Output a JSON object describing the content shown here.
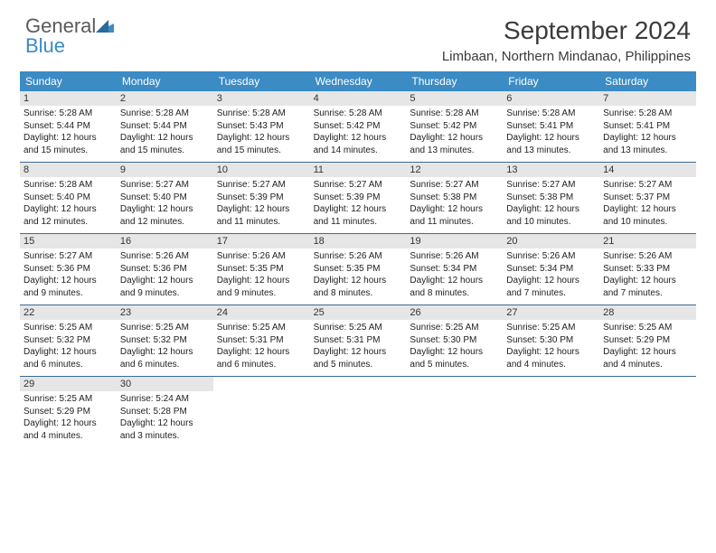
{
  "logo": {
    "general": "General",
    "blue": "Blue"
  },
  "header": {
    "month_title": "September 2024",
    "location": "Limbaan, Northern Mindanao, Philippines"
  },
  "colors": {
    "header_bg": "#3b8bc4",
    "week_divider": "#3b6a95",
    "day_num_bg": "#e6e6e6",
    "text": "#222222"
  },
  "day_names": [
    "Sunday",
    "Monday",
    "Tuesday",
    "Wednesday",
    "Thursday",
    "Friday",
    "Saturday"
  ],
  "weeks": [
    [
      {
        "num": "1",
        "sunrise": "Sunrise: 5:28 AM",
        "sunset": "Sunset: 5:44 PM",
        "d1": "Daylight: 12 hours",
        "d2": "and 15 minutes."
      },
      {
        "num": "2",
        "sunrise": "Sunrise: 5:28 AM",
        "sunset": "Sunset: 5:44 PM",
        "d1": "Daylight: 12 hours",
        "d2": "and 15 minutes."
      },
      {
        "num": "3",
        "sunrise": "Sunrise: 5:28 AM",
        "sunset": "Sunset: 5:43 PM",
        "d1": "Daylight: 12 hours",
        "d2": "and 15 minutes."
      },
      {
        "num": "4",
        "sunrise": "Sunrise: 5:28 AM",
        "sunset": "Sunset: 5:42 PM",
        "d1": "Daylight: 12 hours",
        "d2": "and 14 minutes."
      },
      {
        "num": "5",
        "sunrise": "Sunrise: 5:28 AM",
        "sunset": "Sunset: 5:42 PM",
        "d1": "Daylight: 12 hours",
        "d2": "and 13 minutes."
      },
      {
        "num": "6",
        "sunrise": "Sunrise: 5:28 AM",
        "sunset": "Sunset: 5:41 PM",
        "d1": "Daylight: 12 hours",
        "d2": "and 13 minutes."
      },
      {
        "num": "7",
        "sunrise": "Sunrise: 5:28 AM",
        "sunset": "Sunset: 5:41 PM",
        "d1": "Daylight: 12 hours",
        "d2": "and 13 minutes."
      }
    ],
    [
      {
        "num": "8",
        "sunrise": "Sunrise: 5:28 AM",
        "sunset": "Sunset: 5:40 PM",
        "d1": "Daylight: 12 hours",
        "d2": "and 12 minutes."
      },
      {
        "num": "9",
        "sunrise": "Sunrise: 5:27 AM",
        "sunset": "Sunset: 5:40 PM",
        "d1": "Daylight: 12 hours",
        "d2": "and 12 minutes."
      },
      {
        "num": "10",
        "sunrise": "Sunrise: 5:27 AM",
        "sunset": "Sunset: 5:39 PM",
        "d1": "Daylight: 12 hours",
        "d2": "and 11 minutes."
      },
      {
        "num": "11",
        "sunrise": "Sunrise: 5:27 AM",
        "sunset": "Sunset: 5:39 PM",
        "d1": "Daylight: 12 hours",
        "d2": "and 11 minutes."
      },
      {
        "num": "12",
        "sunrise": "Sunrise: 5:27 AM",
        "sunset": "Sunset: 5:38 PM",
        "d1": "Daylight: 12 hours",
        "d2": "and 11 minutes."
      },
      {
        "num": "13",
        "sunrise": "Sunrise: 5:27 AM",
        "sunset": "Sunset: 5:38 PM",
        "d1": "Daylight: 12 hours",
        "d2": "and 10 minutes."
      },
      {
        "num": "14",
        "sunrise": "Sunrise: 5:27 AM",
        "sunset": "Sunset: 5:37 PM",
        "d1": "Daylight: 12 hours",
        "d2": "and 10 minutes."
      }
    ],
    [
      {
        "num": "15",
        "sunrise": "Sunrise: 5:27 AM",
        "sunset": "Sunset: 5:36 PM",
        "d1": "Daylight: 12 hours",
        "d2": "and 9 minutes."
      },
      {
        "num": "16",
        "sunrise": "Sunrise: 5:26 AM",
        "sunset": "Sunset: 5:36 PM",
        "d1": "Daylight: 12 hours",
        "d2": "and 9 minutes."
      },
      {
        "num": "17",
        "sunrise": "Sunrise: 5:26 AM",
        "sunset": "Sunset: 5:35 PM",
        "d1": "Daylight: 12 hours",
        "d2": "and 9 minutes."
      },
      {
        "num": "18",
        "sunrise": "Sunrise: 5:26 AM",
        "sunset": "Sunset: 5:35 PM",
        "d1": "Daylight: 12 hours",
        "d2": "and 8 minutes."
      },
      {
        "num": "19",
        "sunrise": "Sunrise: 5:26 AM",
        "sunset": "Sunset: 5:34 PM",
        "d1": "Daylight: 12 hours",
        "d2": "and 8 minutes."
      },
      {
        "num": "20",
        "sunrise": "Sunrise: 5:26 AM",
        "sunset": "Sunset: 5:34 PM",
        "d1": "Daylight: 12 hours",
        "d2": "and 7 minutes."
      },
      {
        "num": "21",
        "sunrise": "Sunrise: 5:26 AM",
        "sunset": "Sunset: 5:33 PM",
        "d1": "Daylight: 12 hours",
        "d2": "and 7 minutes."
      }
    ],
    [
      {
        "num": "22",
        "sunrise": "Sunrise: 5:25 AM",
        "sunset": "Sunset: 5:32 PM",
        "d1": "Daylight: 12 hours",
        "d2": "and 6 minutes."
      },
      {
        "num": "23",
        "sunrise": "Sunrise: 5:25 AM",
        "sunset": "Sunset: 5:32 PM",
        "d1": "Daylight: 12 hours",
        "d2": "and 6 minutes."
      },
      {
        "num": "24",
        "sunrise": "Sunrise: 5:25 AM",
        "sunset": "Sunset: 5:31 PM",
        "d1": "Daylight: 12 hours",
        "d2": "and 6 minutes."
      },
      {
        "num": "25",
        "sunrise": "Sunrise: 5:25 AM",
        "sunset": "Sunset: 5:31 PM",
        "d1": "Daylight: 12 hours",
        "d2": "and 5 minutes."
      },
      {
        "num": "26",
        "sunrise": "Sunrise: 5:25 AM",
        "sunset": "Sunset: 5:30 PM",
        "d1": "Daylight: 12 hours",
        "d2": "and 5 minutes."
      },
      {
        "num": "27",
        "sunrise": "Sunrise: 5:25 AM",
        "sunset": "Sunset: 5:30 PM",
        "d1": "Daylight: 12 hours",
        "d2": "and 4 minutes."
      },
      {
        "num": "28",
        "sunrise": "Sunrise: 5:25 AM",
        "sunset": "Sunset: 5:29 PM",
        "d1": "Daylight: 12 hours",
        "d2": "and 4 minutes."
      }
    ],
    [
      {
        "num": "29",
        "sunrise": "Sunrise: 5:25 AM",
        "sunset": "Sunset: 5:29 PM",
        "d1": "Daylight: 12 hours",
        "d2": "and 4 minutes."
      },
      {
        "num": "30",
        "sunrise": "Sunrise: 5:24 AM",
        "sunset": "Sunset: 5:28 PM",
        "d1": "Daylight: 12 hours",
        "d2": "and 3 minutes."
      },
      null,
      null,
      null,
      null,
      null
    ]
  ]
}
